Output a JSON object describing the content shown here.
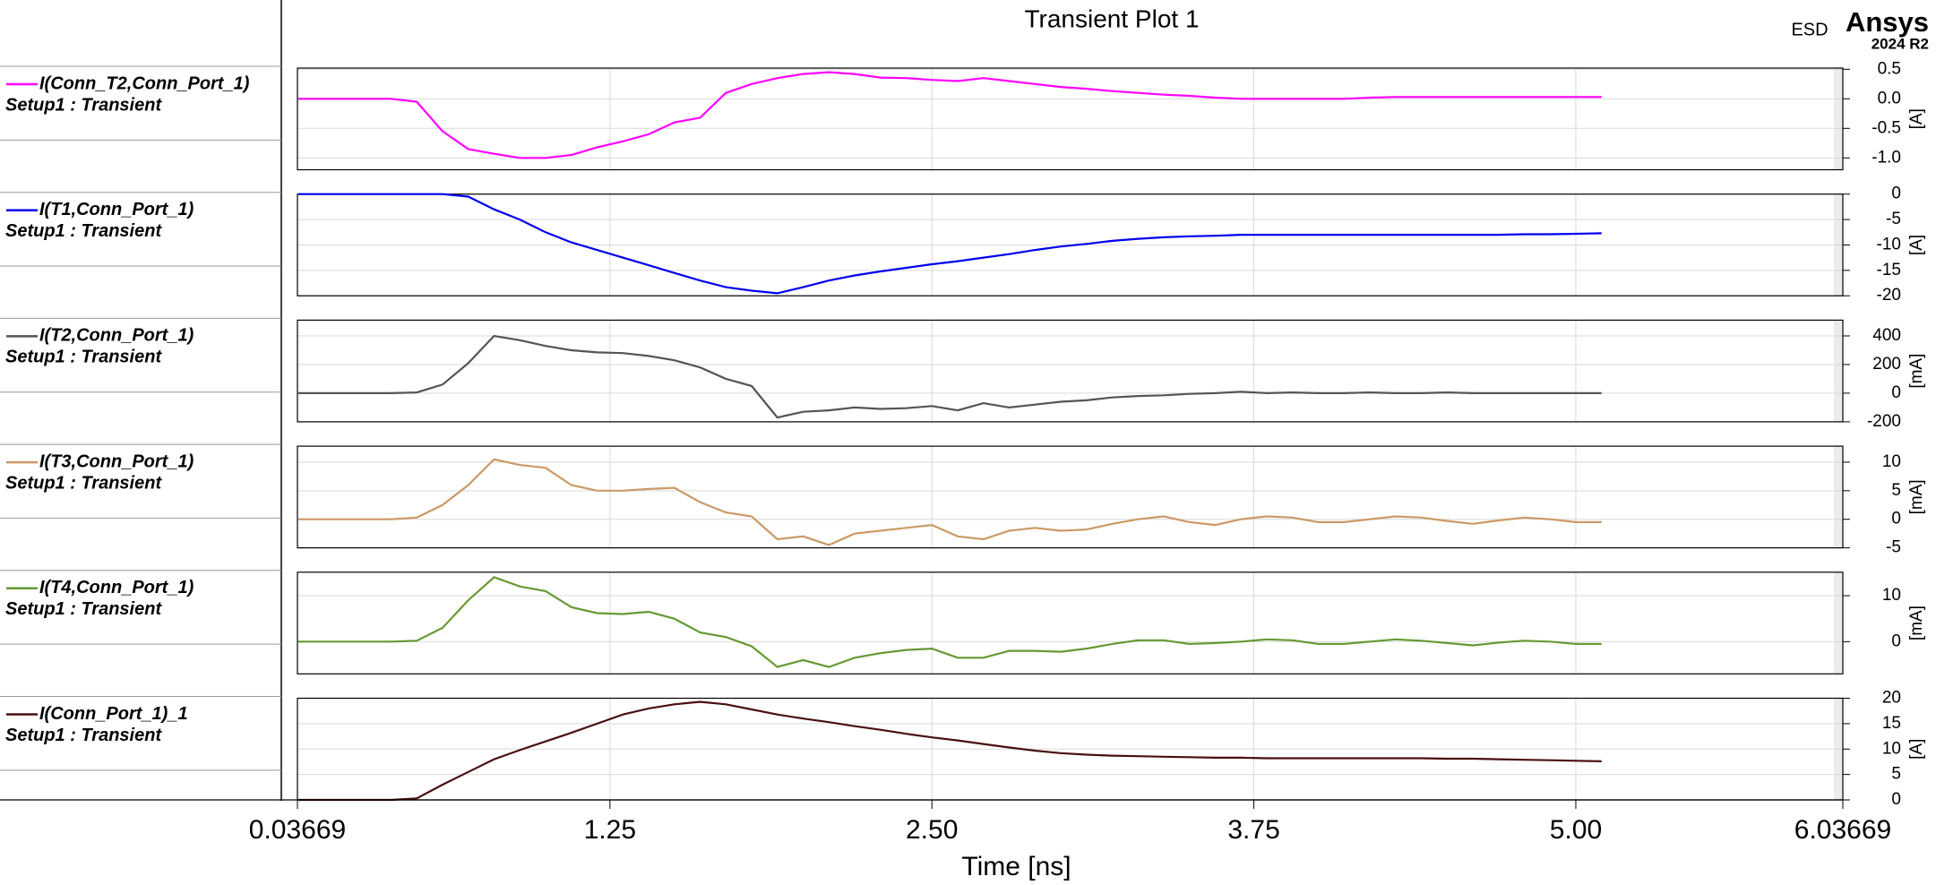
{
  "header": {
    "title": "Transient Plot 1",
    "tag": "ESD",
    "brand": "Ansys",
    "version": "2024 R2"
  },
  "chart_data": [
    {
      "type": "line",
      "xlim": [
        0.03669,
        6.03669
      ],
      "ylim": [
        -1.2,
        0.52
      ],
      "yticks": [
        0.5,
        {
          "value": 0,
          "label": "0.0"
        },
        -0.5,
        {
          "value": -1,
          "label": "-1.0"
        }
      ],
      "ylabel": "[A]",
      "grid": true,
      "x": [
        0.04,
        0.2,
        0.3,
        0.4,
        0.5,
        0.6,
        0.7,
        0.8,
        0.9,
        1.0,
        1.1,
        1.2,
        1.3,
        1.4,
        1.5,
        1.6,
        1.7,
        1.8,
        1.9,
        2.0,
        2.1,
        2.2,
        2.3,
        2.4,
        2.5,
        2.6,
        2.7,
        2.8,
        2.9,
        3.0,
        3.1,
        3.2,
        3.3,
        3.4,
        3.5,
        3.6,
        3.7,
        3.8,
        3.9,
        4.0,
        4.1,
        4.2,
        4.3,
        4.4,
        4.5,
        4.6,
        4.7,
        4.8,
        4.9,
        5.0,
        5.1
      ],
      "series": [
        {
          "name": "I(Conn_T2,Conn_Port_1)",
          "subtitle": "Setup1 : Transient",
          "color": "#ff00ff",
          "values": [
            0,
            0,
            0,
            0,
            -0.05,
            -0.55,
            -0.85,
            -0.93,
            -1.0,
            -1.0,
            -0.95,
            -0.82,
            -0.72,
            -0.6,
            -0.4,
            -0.32,
            0.1,
            0.25,
            0.35,
            0.42,
            0.45,
            0.42,
            0.36,
            0.35,
            0.32,
            0.3,
            0.35,
            0.3,
            0.25,
            0.2,
            0.17,
            0.13,
            0.1,
            0.07,
            0.05,
            0.02,
            0,
            0,
            0,
            0,
            0,
            0.02,
            0.03,
            0.03,
            0.03,
            0.03,
            0.03,
            0.03,
            0.03,
            0.03,
            0.03
          ]
        }
      ]
    },
    {
      "type": "line",
      "xlim": [
        0.03669,
        6.03669
      ],
      "ylim": [
        -20,
        0
      ],
      "yticks": [
        0,
        -5,
        -10,
        -15,
        -20
      ],
      "ylabel": "[A]",
      "grid": true,
      "x": [
        0.04,
        0.2,
        0.3,
        0.4,
        0.5,
        0.6,
        0.7,
        0.8,
        0.9,
        1.0,
        1.1,
        1.2,
        1.3,
        1.4,
        1.5,
        1.6,
        1.7,
        1.8,
        1.9,
        2.0,
        2.1,
        2.2,
        2.3,
        2.4,
        2.5,
        2.6,
        2.7,
        2.8,
        2.9,
        3.0,
        3.1,
        3.2,
        3.3,
        3.4,
        3.5,
        3.6,
        3.7,
        3.8,
        3.9,
        4.0,
        4.1,
        4.2,
        4.3,
        4.4,
        4.5,
        4.6,
        4.7,
        4.8,
        4.9,
        5.0,
        5.1
      ],
      "series": [
        {
          "name": "I(T1,Conn_Port_1)",
          "subtitle": "Setup1 : Transient",
          "color": "#0000ee",
          "values": [
            0,
            0,
            0,
            0,
            0,
            0,
            -0.5,
            -3,
            -5,
            -7.5,
            -9.5,
            -11,
            -12.5,
            -14,
            -15.5,
            -17,
            -18.3,
            -19,
            -19.5,
            -18.3,
            -17,
            -16,
            -15.2,
            -14.5,
            -13.8,
            -13.2,
            -12.5,
            -11.8,
            -11,
            -10.3,
            -9.8,
            -9.2,
            -8.8,
            -8.5,
            -8.3,
            -8.2,
            -8,
            -8,
            -8,
            -8,
            -8,
            -8,
            -8,
            -8,
            -8,
            -8,
            -8,
            -7.9,
            -7.9,
            -7.8,
            -7.7
          ]
        }
      ]
    },
    {
      "type": "line",
      "xlim": [
        0.03669,
        6.03669
      ],
      "ylim": [
        -200,
        510
      ],
      "yticks": [
        400,
        200,
        0,
        -200
      ],
      "ylabel": "[mA]",
      "grid": true,
      "x": [
        0.04,
        0.2,
        0.3,
        0.4,
        0.5,
        0.6,
        0.7,
        0.8,
        0.9,
        1.0,
        1.1,
        1.2,
        1.3,
        1.4,
        1.5,
        1.6,
        1.7,
        1.8,
        1.9,
        2.0,
        2.1,
        2.2,
        2.3,
        2.4,
        2.5,
        2.6,
        2.7,
        2.8,
        2.9,
        3.0,
        3.1,
        3.2,
        3.3,
        3.4,
        3.5,
        3.6,
        3.7,
        3.8,
        3.9,
        4.0,
        4.1,
        4.2,
        4.3,
        4.4,
        4.5,
        4.6,
        4.7,
        4.8,
        4.9,
        5.0,
        5.1
      ],
      "series": [
        {
          "name": "I(T2,Conn_Port_1)",
          "subtitle": "Setup1 : Transient",
          "color": "#555555",
          "values": [
            0,
            0,
            0,
            0,
            5,
            60,
            210,
            400,
            370,
            330,
            300,
            285,
            280,
            260,
            230,
            180,
            100,
            50,
            -170,
            -130,
            -120,
            -100,
            -110,
            -105,
            -90,
            -120,
            -70,
            -100,
            -80,
            -60,
            -50,
            -30,
            -20,
            -15,
            -5,
            0,
            10,
            0,
            5,
            0,
            0,
            5,
            0,
            0,
            5,
            0,
            0,
            0,
            0,
            0,
            0
          ]
        }
      ]
    },
    {
      "type": "line",
      "xlim": [
        0.03669,
        6.03669
      ],
      "ylim": [
        -5,
        12.8
      ],
      "yticks": [
        10,
        5,
        0,
        -5
      ],
      "ylabel": "[mA]",
      "grid": true,
      "x": [
        0.04,
        0.2,
        0.3,
        0.4,
        0.5,
        0.6,
        0.7,
        0.8,
        0.9,
        1.0,
        1.1,
        1.2,
        1.3,
        1.4,
        1.5,
        1.6,
        1.7,
        1.8,
        1.9,
        2.0,
        2.1,
        2.2,
        2.3,
        2.4,
        2.5,
        2.6,
        2.7,
        2.8,
        2.9,
        3.0,
        3.1,
        3.2,
        3.3,
        3.4,
        3.5,
        3.6,
        3.7,
        3.8,
        3.9,
        4.0,
        4.1,
        4.2,
        4.3,
        4.4,
        4.5,
        4.6,
        4.7,
        4.8,
        4.9,
        5.0,
        5.1
      ],
      "series": [
        {
          "name": "I(T3,Conn_Port_1)",
          "subtitle": "Setup1 : Transient",
          "color": "#cc9966",
          "values": [
            0,
            0,
            0,
            0,
            0.3,
            2.5,
            6,
            10.5,
            9.5,
            9,
            6,
            5,
            5,
            5.3,
            5.5,
            3,
            1.2,
            0.5,
            -3.5,
            -3,
            -4.5,
            -2.5,
            -2,
            -1.5,
            -1,
            -3,
            -3.5,
            -2,
            -1.5,
            -2,
            -1.8,
            -0.8,
            0,
            0.5,
            -0.5,
            -1,
            0,
            0.5,
            0.3,
            -0.5,
            -0.5,
            0,
            0.5,
            0.3,
            -0.3,
            -0.8,
            -0.2,
            0.3,
            0,
            -0.5,
            -0.5
          ]
        }
      ]
    },
    {
      "type": "line",
      "xlim": [
        0.03669,
        6.03669
      ],
      "ylim": [
        -7,
        15.1
      ],
      "yticks": [
        10,
        0
      ],
      "ylabel": "[mA]",
      "grid": true,
      "x": [
        0.04,
        0.2,
        0.3,
        0.4,
        0.5,
        0.6,
        0.7,
        0.8,
        0.9,
        1.0,
        1.1,
        1.2,
        1.3,
        1.4,
        1.5,
        1.6,
        1.7,
        1.8,
        1.9,
        2.0,
        2.1,
        2.2,
        2.3,
        2.4,
        2.5,
        2.6,
        2.7,
        2.8,
        2.9,
        3.0,
        3.1,
        3.2,
        3.3,
        3.4,
        3.5,
        3.6,
        3.7,
        3.8,
        3.9,
        4.0,
        4.1,
        4.2,
        4.3,
        4.4,
        4.5,
        4.6,
        4.7,
        4.8,
        4.9,
        5.0,
        5.1
      ],
      "series": [
        {
          "name": "I(T4,Conn_Port_1)",
          "subtitle": "Setup1 : Transient",
          "color": "#669933",
          "values": [
            0,
            0,
            0,
            0,
            0.2,
            3,
            9,
            14,
            12,
            11,
            7.5,
            6.2,
            6,
            6.5,
            5,
            2,
            1,
            -1,
            -5.5,
            -4,
            -5.5,
            -3.5,
            -2.5,
            -1.8,
            -1.5,
            -3.5,
            -3.5,
            -2,
            -2,
            -2.2,
            -1.5,
            -0.5,
            0.3,
            0.3,
            -0.5,
            -0.3,
            0,
            0.5,
            0.3,
            -0.5,
            -0.5,
            0,
            0.5,
            0.2,
            -0.3,
            -0.8,
            -0.2,
            0.2,
            0,
            -0.5,
            -0.5
          ]
        }
      ]
    },
    {
      "type": "line",
      "xlim": [
        0.03669,
        6.03669
      ],
      "ylim": [
        0,
        20
      ],
      "yticks": [
        20,
        15,
        10,
        5,
        0
      ],
      "ylabel": "[A]",
      "grid": true,
      "xticks": [
        0.03669,
        1.25,
        {
          "value": 2.5,
          "label": "2.50"
        },
        3.75,
        {
          "value": 5,
          "label": "5.00"
        },
        6.03669
      ],
      "xlabel": "Time [ns]",
      "x": [
        0.04,
        0.2,
        0.3,
        0.4,
        0.5,
        0.6,
        0.7,
        0.8,
        0.9,
        1.0,
        1.1,
        1.2,
        1.3,
        1.4,
        1.5,
        1.6,
        1.7,
        1.8,
        1.9,
        2.0,
        2.1,
        2.2,
        2.3,
        2.4,
        2.5,
        2.6,
        2.7,
        2.8,
        2.9,
        3.0,
        3.1,
        3.2,
        3.3,
        3.4,
        3.5,
        3.6,
        3.7,
        3.8,
        3.9,
        4.0,
        4.1,
        4.2,
        4.3,
        4.4,
        4.5,
        4.6,
        4.7,
        4.8,
        4.9,
        5.0,
        5.1
      ],
      "series": [
        {
          "name": "I(Conn_Port_1)_1",
          "subtitle": "Setup1 : Transient",
          "color": "#4a0f10",
          "values": [
            0,
            0,
            0,
            0,
            0.3,
            3,
            5.5,
            8,
            9.8,
            11.5,
            13.2,
            15,
            16.8,
            18,
            18.8,
            19.3,
            18.8,
            17.8,
            16.8,
            16,
            15.3,
            14.5,
            13.8,
            13,
            12.3,
            11.7,
            11,
            10.3,
            9.7,
            9.2,
            8.9,
            8.7,
            8.6,
            8.5,
            8.4,
            8.3,
            8.3,
            8.2,
            8.2,
            8.2,
            8.2,
            8.2,
            8.2,
            8.2,
            8.1,
            8.1,
            8.0,
            7.9,
            7.8,
            7.7,
            7.6
          ]
        }
      ]
    }
  ]
}
